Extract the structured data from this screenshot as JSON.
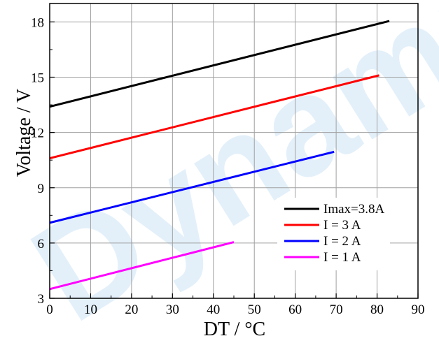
{
  "watermark": "Dynamic",
  "chart_data": {
    "type": "line",
    "title": "",
    "xlabel": "DT / °C",
    "ylabel": "Voltage / V",
    "xlim": [
      0,
      90
    ],
    "ylim": [
      3,
      19
    ],
    "xticks": [
      0,
      10,
      20,
      30,
      40,
      50,
      60,
      70,
      80,
      90
    ],
    "yticks": [
      3,
      6,
      9,
      12,
      15,
      18
    ],
    "grid": true,
    "legend_position": "bottom-right",
    "series": [
      {
        "name": "Imax=3.8A",
        "color": "#000000",
        "x": [
          0,
          83
        ],
        "y": [
          13.4,
          18.05
        ]
      },
      {
        "name": "I = 3 A",
        "color": "#ff0000",
        "x": [
          0,
          80.5
        ],
        "y": [
          10.6,
          15.1
        ]
      },
      {
        "name": "I = 2 A",
        "color": "#0000ff",
        "x": [
          0,
          69.5
        ],
        "y": [
          7.1,
          10.95
        ]
      },
      {
        "name": "I = 1 A",
        "color": "#ff00ff",
        "x": [
          0,
          45
        ],
        "y": [
          3.5,
          6.05
        ]
      }
    ]
  }
}
